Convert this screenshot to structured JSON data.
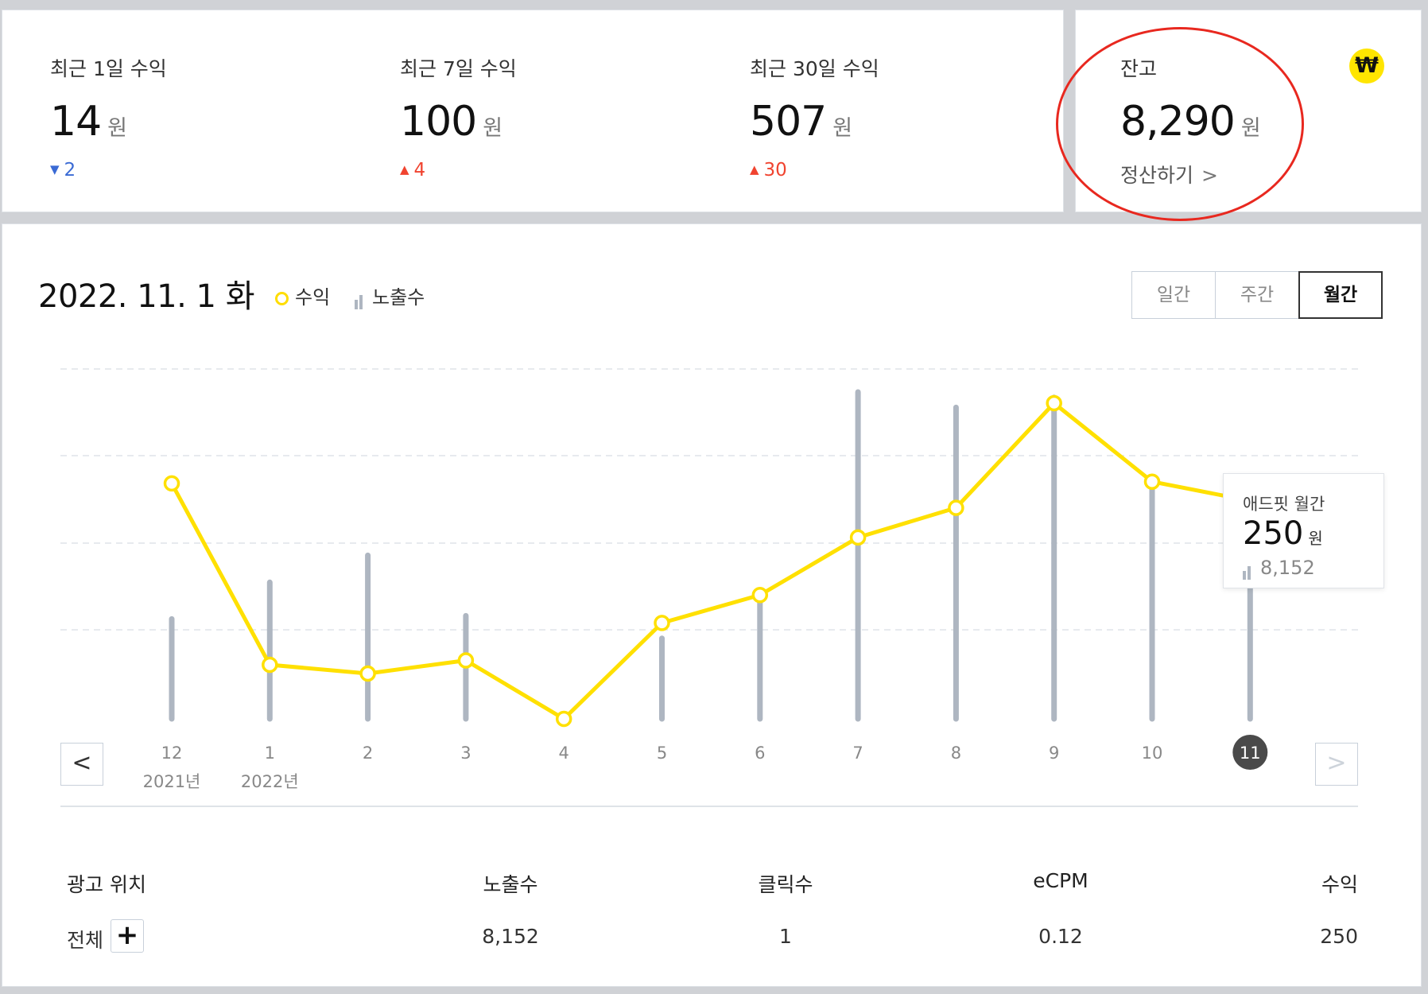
{
  "summary": {
    "stats": [
      {
        "label": "최근 1일 수익",
        "value": "14",
        "unit": "원",
        "change": "2",
        "direction": "down"
      },
      {
        "label": "최근 7일 수익",
        "value": "100",
        "unit": "원",
        "change": "4",
        "direction": "up"
      },
      {
        "label": "최근 30일 수익",
        "value": "507",
        "unit": "원",
        "change": "30",
        "direction": "up"
      }
    ]
  },
  "balance": {
    "label": "잔고",
    "value": "8,290",
    "unit": "원",
    "settle_label": "정산하기",
    "badge_symbol": "₩",
    "badge_icon": "won-coin-icon"
  },
  "chart_header": {
    "date": "2022. 11. 1 화",
    "legend_revenue": "수익",
    "legend_impressions": "노출수",
    "tabs": [
      "일간",
      "주간",
      "월간"
    ],
    "active_tab": "월간"
  },
  "tooltip": {
    "title": "애드핏 월간",
    "value": "250",
    "unit": "원",
    "impressions": "8,152"
  },
  "chart_data": {
    "type": "line",
    "categories": [
      "12",
      "1",
      "2",
      "3",
      "4",
      "5",
      "6",
      "7",
      "8",
      "9",
      "10",
      "11"
    ],
    "category_sublabels": [
      "2021년",
      "2022년",
      "",
      "",
      "",
      "",
      "",
      "",
      "",
      "",
      "",
      ""
    ],
    "selected_category": "11",
    "series": [
      {
        "name": "수익",
        "kind": "line",
        "color": "#ffe000",
        "values": [
          270,
          62,
          52,
          67,
          0,
          110,
          142,
          208,
          242,
          362,
          272,
          250
        ]
      },
      {
        "name": "노출수",
        "kind": "bar",
        "color": "#aeb6c1",
        "values": [
          4480,
          6120,
          7330,
          4620,
          0,
          3610,
          5780,
          14650,
          13960,
          14410,
          10480,
          8152
        ]
      }
    ],
    "grid": true,
    "legend_position": "top-left"
  },
  "table": {
    "headers": [
      "광고 위치",
      "노출수",
      "클릭수",
      "eCPM",
      "수익"
    ],
    "row": {
      "position": "전체",
      "impressions": "8,152",
      "clicks": "1",
      "ecpm": "0.12",
      "revenue": "250"
    },
    "expand_symbol": "+"
  },
  "nav": {
    "prev": "<",
    "next": ">"
  },
  "colors": {
    "accent": "#ffe000",
    "bar": "#aeb6c1",
    "up": "#f0432f",
    "down": "#3a6ad4",
    "annotation": "#e8281f"
  }
}
